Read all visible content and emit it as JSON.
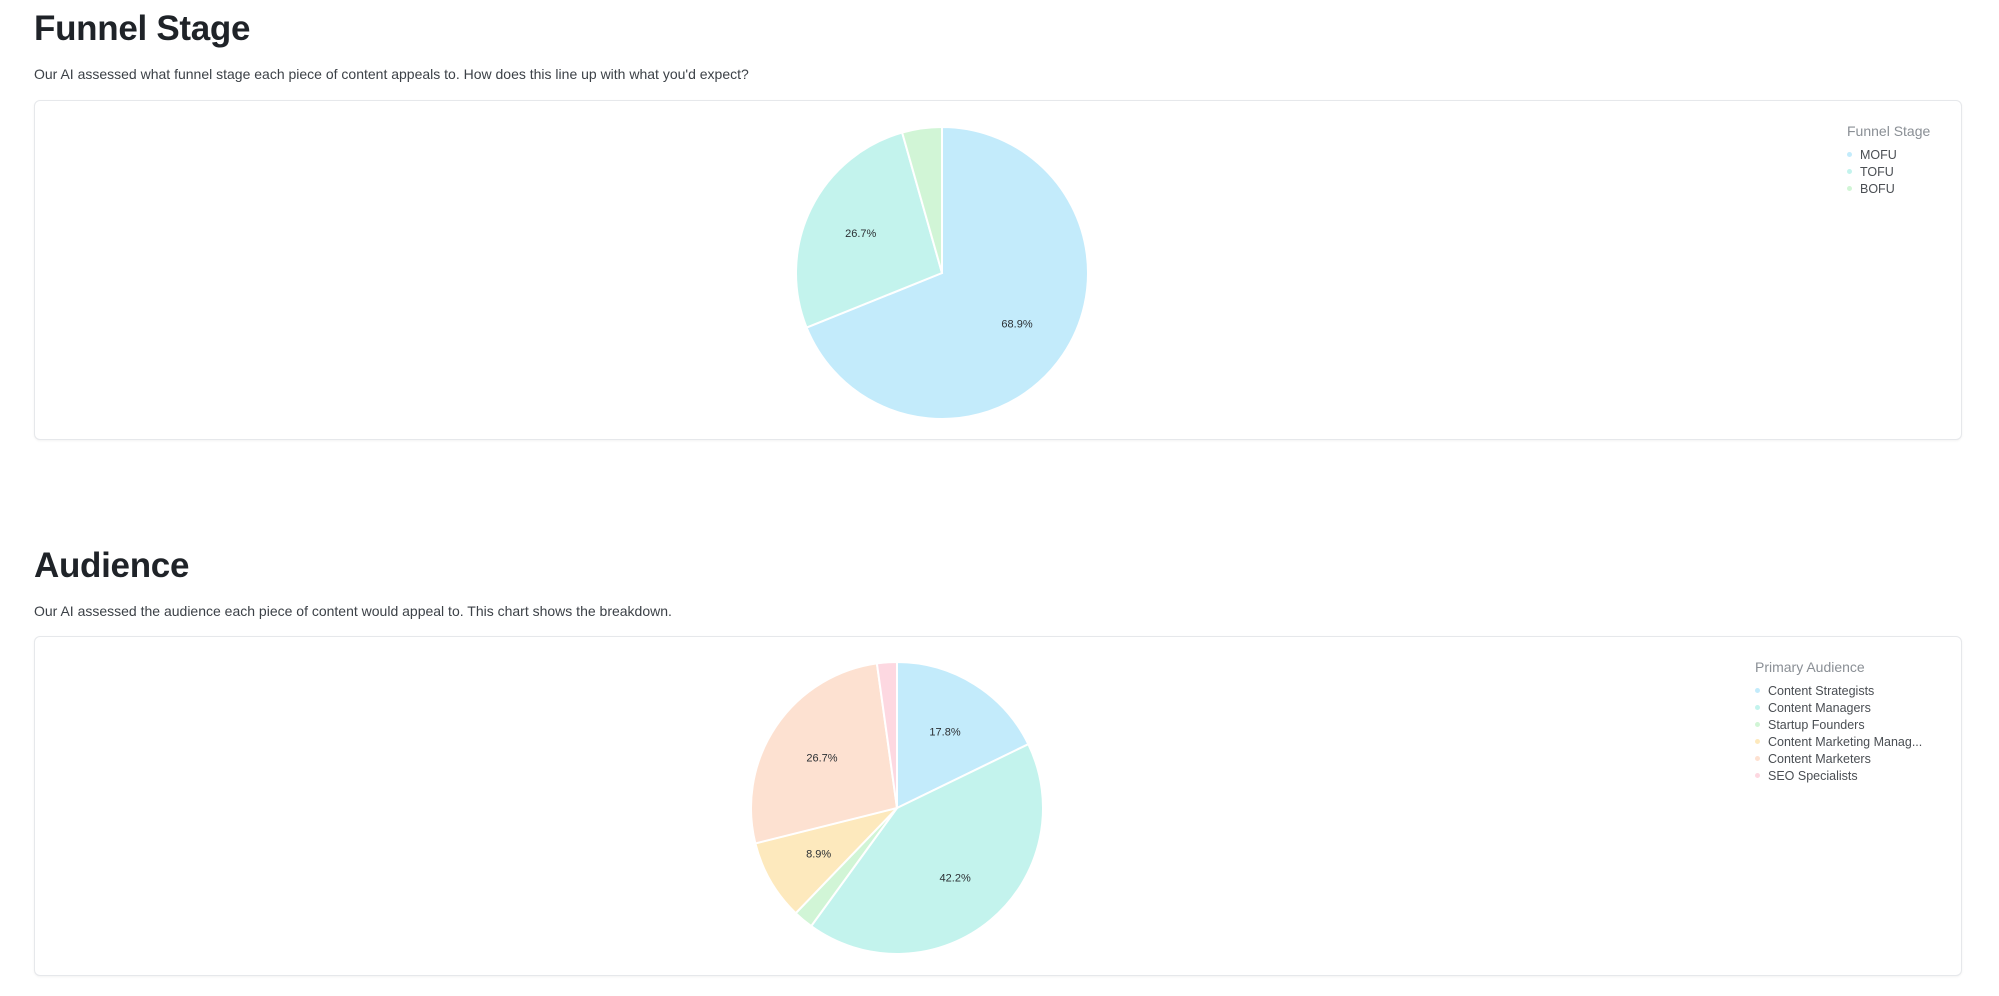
{
  "sections": [
    {
      "title": "Funnel Stage",
      "description": "Our AI assessed what funnel stage each piece of content appeals to. How does this line up with what you'd expect?"
    },
    {
      "title": "Audience",
      "description": "Our AI assessed the audience each piece of content would appeal to. This chart shows the breakdown."
    }
  ],
  "chart_data": [
    {
      "type": "pie",
      "title": "",
      "legend_title": "Funnel Stage",
      "legend_position": "top-right",
      "categories": [
        "MOFU",
        "TOFU",
        "BOFU"
      ],
      "values": [
        68.9,
        26.7,
        4.4
      ],
      "labels": [
        "68.9%",
        "26.7%",
        ""
      ],
      "colors": [
        "#c3ebfb",
        "#c3f3ed",
        "#d1f5d6"
      ]
    },
    {
      "type": "pie",
      "title": "",
      "legend_title": "Primary Audience",
      "legend_position": "top-right",
      "categories": [
        "Content Strategists",
        "Content Managers",
        "Startup Founders",
        "Content Marketing Manag...",
        "Content Marketers",
        "SEO Specialists"
      ],
      "values": [
        17.8,
        42.2,
        2.2,
        8.9,
        26.7,
        2.2
      ],
      "labels": [
        "17.8%",
        "42.2%",
        "",
        "8.9%",
        "26.7%",
        ""
      ],
      "colors": [
        "#c3ebfb",
        "#c3f3ed",
        "#d1f5d6",
        "#fde9bd",
        "#fde1d1",
        "#fdd8e1"
      ]
    }
  ]
}
